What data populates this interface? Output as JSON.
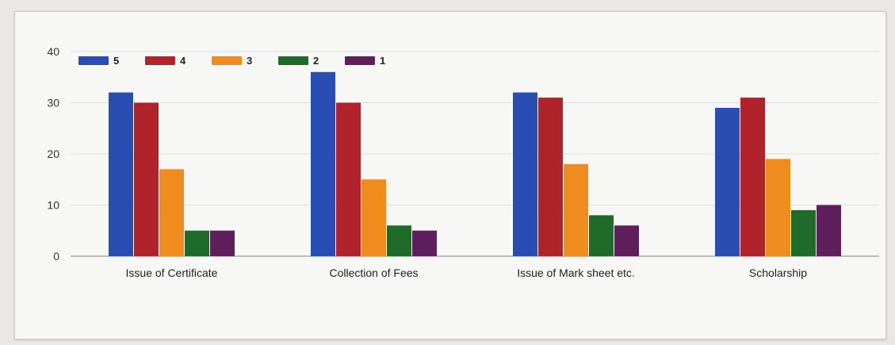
{
  "chart_data": {
    "type": "bar",
    "title": "",
    "xlabel": "",
    "ylabel": "",
    "ylim": [
      0,
      40
    ],
    "yticks": [
      0,
      10,
      20,
      30,
      40
    ],
    "grid": true,
    "legend_position": "top-left",
    "categories": [
      "Issue of Certificate",
      "Collection of Fees",
      "Issue of Mark sheet etc.",
      "Scholarship"
    ],
    "series": [
      {
        "name": "5",
        "color": "#2a4db3",
        "values": [
          32,
          36,
          32,
          29
        ]
      },
      {
        "name": "4",
        "color": "#b0232a",
        "values": [
          30,
          30,
          31,
          31
        ]
      },
      {
        "name": "3",
        "color": "#f08c1e",
        "values": [
          17,
          15,
          18,
          19
        ]
      },
      {
        "name": "2",
        "color": "#1f6b2a",
        "values": [
          5,
          6,
          8,
          9
        ]
      },
      {
        "name": "1",
        "color": "#5e1f5c",
        "values": [
          5,
          5,
          6,
          10
        ]
      }
    ]
  }
}
